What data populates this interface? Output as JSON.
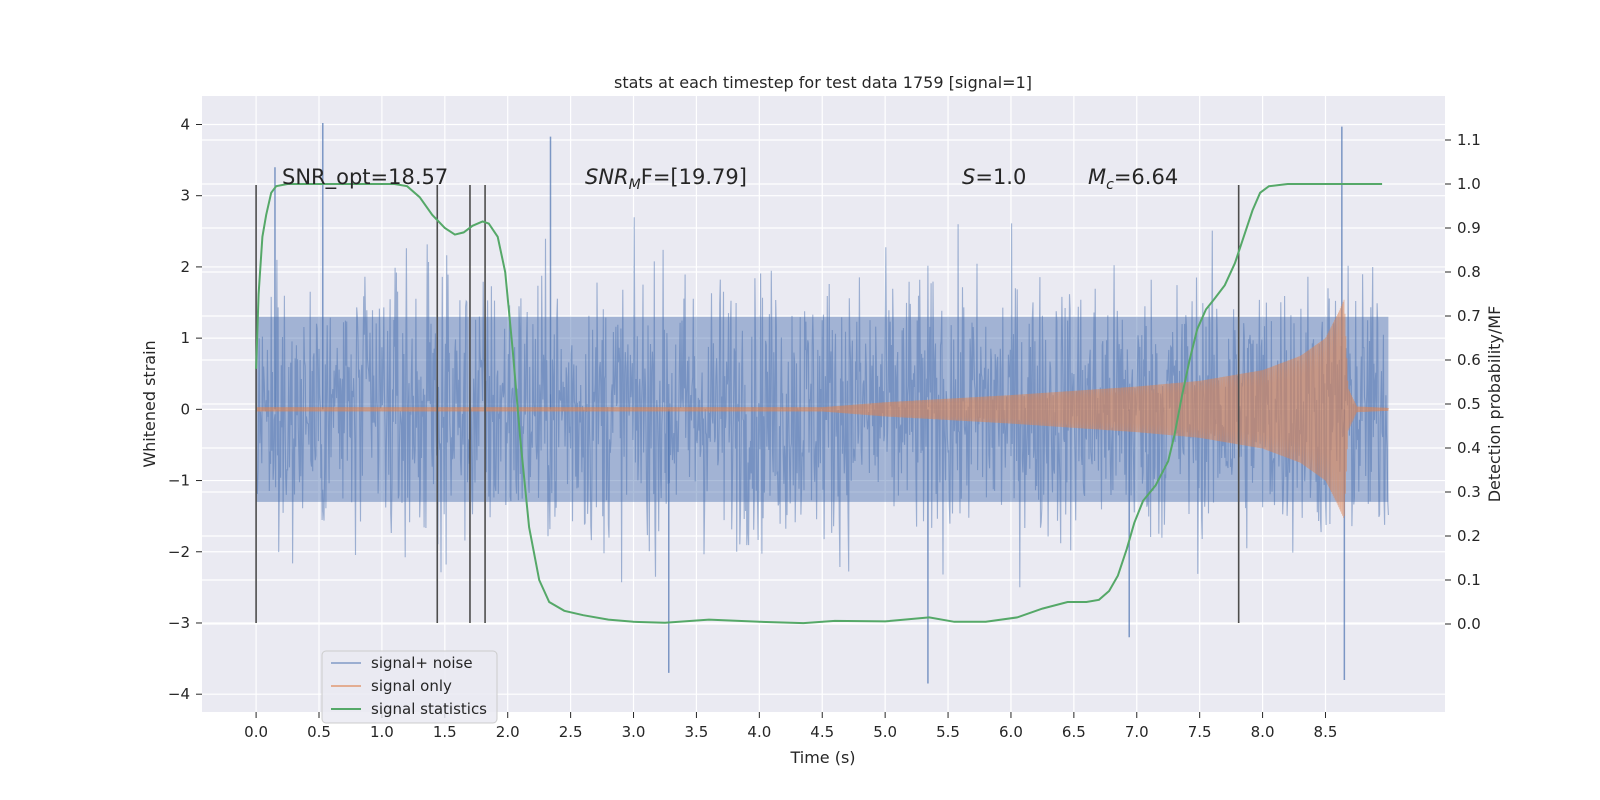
{
  "chart_data": {
    "type": "line",
    "title": "stats at each timestep for test data 1759 [signal=1]",
    "xlabel": "Time (s)",
    "ylabel": "Whitened strain",
    "y2label": "Detection probability/MF",
    "xlim": [
      -0.43,
      9.45
    ],
    "ylim": [
      -4.25,
      4.4
    ],
    "y2lim": [
      -0.2,
      1.2
    ],
    "x_ticks": [
      "0.0",
      "0.5",
      "1.0",
      "1.5",
      "2.0",
      "2.5",
      "3.0",
      "3.5",
      "4.0",
      "4.5",
      "5.0",
      "5.5",
      "6.0",
      "6.5",
      "7.0",
      "7.5",
      "8.0",
      "8.5"
    ],
    "x_tick_values": [
      0,
      0.5,
      1,
      1.5,
      2,
      2.5,
      3,
      3.5,
      4,
      4.5,
      5,
      5.5,
      6,
      6.5,
      7,
      7.5,
      8,
      8.5
    ],
    "y_ticks": [
      "−4",
      "−3",
      "−2",
      "−1",
      "0",
      "1",
      "2",
      "3",
      "4"
    ],
    "y_tick_values": [
      -4,
      -3,
      -2,
      -1,
      0,
      1,
      2,
      3,
      4
    ],
    "y2_ticks": [
      "0.0",
      "0.1",
      "0.2",
      "0.3",
      "0.4",
      "0.5",
      "0.6",
      "0.7",
      "0.8",
      "0.9",
      "1.0",
      "1.1"
    ],
    "y2_tick_values": [
      0,
      0.1,
      0.2,
      0.3,
      0.4,
      0.5,
      0.6,
      0.7,
      0.8,
      0.9,
      1.0,
      1.1
    ],
    "grid": true,
    "background": "#eaeaf2",
    "legend_position": "bottom-left",
    "annotations": [
      {
        "id": "snr-opt",
        "text": "SNR_opt=18.57",
        "x": 0.2,
        "y": 3.1
      },
      {
        "id": "snr-mf",
        "base": "SNR",
        "sub": "M",
        "rest": "F=[19.79]",
        "x": 2.6,
        "y": 3.1
      },
      {
        "id": "s-stat",
        "base": "S",
        "rest": "=1.0",
        "x": 5.6,
        "y": 3.1
      },
      {
        "id": "mc",
        "base": "M",
        "sub": "c",
        "rest": "=6.64",
        "x": 6.6,
        "y": 3.1
      }
    ],
    "vlines": {
      "x": [
        0.0,
        1.44,
        1.7,
        1.82,
        7.81
      ],
      "ymin": -3.0,
      "ymax": 3.15,
      "color": "#4d4d4d"
    },
    "series": [
      {
        "name": "signal+ noise",
        "color": "#4c72b0",
        "opacity": 0.5,
        "description": "whitened strain noise spanning t=0 to 9.0 s, amplitude roughly ±3",
        "x_range": [
          0,
          9.0
        ],
        "envelope_typical": 1.3,
        "peaks": [
          {
            "x": 0.53,
            "y": 4.02
          },
          {
            "x": 2.34,
            "y": 3.83
          },
          {
            "x": 8.63,
            "y": 3.97
          },
          {
            "x": 3.28,
            "y": -3.7
          },
          {
            "x": 5.34,
            "y": -3.85
          },
          {
            "x": 8.65,
            "y": -3.8
          },
          {
            "x": 0.15,
            "y": 3.4
          },
          {
            "x": 6.94,
            "y": -3.2
          }
        ]
      },
      {
        "name": "signal only",
        "color": "#dd8452",
        "opacity": 0.6,
        "description": "chirp signal growing from near zero around t=4.5 s to a merger peak near t=8.65 s",
        "envelope": [
          {
            "x": 0.0,
            "a": 0.03
          },
          {
            "x": 4.5,
            "a": 0.03
          },
          {
            "x": 5.0,
            "a": 0.1
          },
          {
            "x": 6.0,
            "a": 0.2
          },
          {
            "x": 7.0,
            "a": 0.32
          },
          {
            "x": 7.5,
            "a": 0.4
          },
          {
            "x": 8.0,
            "a": 0.55
          },
          {
            "x": 8.3,
            "a": 0.75
          },
          {
            "x": 8.5,
            "a": 1.0
          },
          {
            "x": 8.6,
            "a": 1.35
          },
          {
            "x": 8.65,
            "a": 1.55
          },
          {
            "x": 8.68,
            "a": 0.3
          },
          {
            "x": 8.75,
            "a": 0.04
          },
          {
            "x": 9.0,
            "a": 0.02
          }
        ]
      },
      {
        "name": "signal statistics",
        "color": "#55a868",
        "axis": "right",
        "points": [
          [
            0.0,
            0.58
          ],
          [
            0.02,
            0.75
          ],
          [
            0.05,
            0.88
          ],
          [
            0.08,
            0.93
          ],
          [
            0.12,
            0.98
          ],
          [
            0.16,
            0.995
          ],
          [
            0.25,
            1.0
          ],
          [
            1.1,
            1.0
          ],
          [
            1.2,
            0.995
          ],
          [
            1.3,
            0.97
          ],
          [
            1.4,
            0.93
          ],
          [
            1.5,
            0.9
          ],
          [
            1.58,
            0.885
          ],
          [
            1.65,
            0.89
          ],
          [
            1.72,
            0.905
          ],
          [
            1.8,
            0.915
          ],
          [
            1.85,
            0.91
          ],
          [
            1.92,
            0.88
          ],
          [
            1.98,
            0.8
          ],
          [
            2.04,
            0.62
          ],
          [
            2.1,
            0.42
          ],
          [
            2.17,
            0.22
          ],
          [
            2.25,
            0.1
          ],
          [
            2.33,
            0.05
          ],
          [
            2.45,
            0.03
          ],
          [
            2.6,
            0.02
          ],
          [
            2.8,
            0.01
          ],
          [
            3.0,
            0.005
          ],
          [
            3.25,
            0.003
          ],
          [
            3.6,
            0.01
          ],
          [
            4.0,
            0.005
          ],
          [
            4.35,
            0.002
          ],
          [
            4.6,
            0.007
          ],
          [
            5.0,
            0.006
          ],
          [
            5.35,
            0.015
          ],
          [
            5.55,
            0.005
          ],
          [
            5.8,
            0.005
          ],
          [
            6.05,
            0.015
          ],
          [
            6.25,
            0.035
          ],
          [
            6.45,
            0.05
          ],
          [
            6.6,
            0.05
          ],
          [
            6.7,
            0.055
          ],
          [
            6.78,
            0.075
          ],
          [
            6.85,
            0.11
          ],
          [
            6.92,
            0.17
          ],
          [
            6.98,
            0.23
          ],
          [
            7.05,
            0.28
          ],
          [
            7.15,
            0.315
          ],
          [
            7.25,
            0.37
          ],
          [
            7.3,
            0.43
          ],
          [
            7.36,
            0.52
          ],
          [
            7.42,
            0.6
          ],
          [
            7.48,
            0.67
          ],
          [
            7.55,
            0.715
          ],
          [
            7.62,
            0.74
          ],
          [
            7.7,
            0.77
          ],
          [
            7.78,
            0.82
          ],
          [
            7.85,
            0.88
          ],
          [
            7.92,
            0.94
          ],
          [
            7.98,
            0.98
          ],
          [
            8.05,
            0.995
          ],
          [
            8.2,
            1.0
          ],
          [
            8.95,
            1.0
          ]
        ]
      }
    ]
  }
}
